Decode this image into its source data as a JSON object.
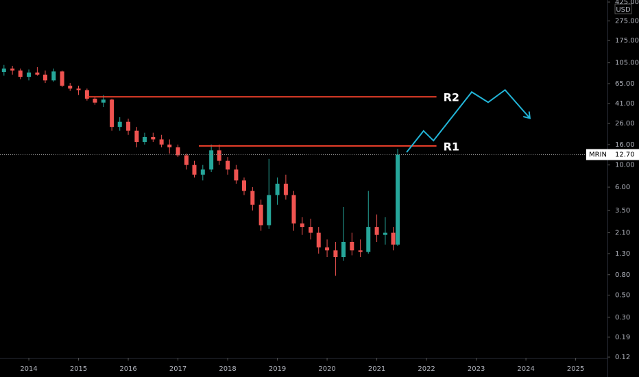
{
  "chart_data": {
    "type": "candlestick",
    "ticker": "MRIN",
    "currency": "USD",
    "log_scale": true,
    "up_color": "#26a69a",
    "down_color": "#ef5350",
    "last_value": {
      "value": 12.7,
      "label": "12.70"
    },
    "xlim": [
      2013.42,
      2025.64
    ],
    "xticks": [
      2014,
      2015,
      2016,
      2017,
      2018,
      2019,
      2020,
      2021,
      2022,
      2023,
      2024,
      2025
    ],
    "ylim": [
      0.12,
      425
    ],
    "yticks": [
      {
        "value": 0.12,
        "label": "0.12"
      },
      {
        "value": 0.19,
        "label": "0.19"
      },
      {
        "value": 0.3,
        "label": "0.30"
      },
      {
        "value": 0.5,
        "label": "0.50"
      },
      {
        "value": 0.8,
        "label": "0.80"
      },
      {
        "value": 1.3,
        "label": "1.30"
      },
      {
        "value": 2.1,
        "label": "2.10"
      },
      {
        "value": 3.5,
        "label": "3.50"
      },
      {
        "value": 6,
        "label": "6.00"
      },
      {
        "value": 10,
        "label": "10.00"
      },
      {
        "value": 16,
        "label": "16.00"
      },
      {
        "value": 26,
        "label": "26.00"
      },
      {
        "value": 41,
        "label": "41.00"
      },
      {
        "value": 65,
        "label": "65.00"
      },
      {
        "value": 105,
        "label": "105.00"
      },
      {
        "value": 175,
        "label": "175.00"
      },
      {
        "value": 275,
        "label": "275.00"
      },
      {
        "value": 425,
        "label": "425.00"
      }
    ],
    "candles": {
      "x": [
        2013.5,
        2013.67,
        2013.83,
        2014.0,
        2014.17,
        2014.33,
        2014.5,
        2014.67,
        2014.83,
        2015.0,
        2015.17,
        2015.33,
        2015.5,
        2015.67,
        2015.83,
        2016.0,
        2016.17,
        2016.33,
        2016.5,
        2016.67,
        2016.83,
        2017.0,
        2017.17,
        2017.33,
        2017.5,
        2017.67,
        2017.83,
        2018.0,
        2018.17,
        2018.33,
        2018.5,
        2018.67,
        2018.83,
        2019.0,
        2019.17,
        2019.33,
        2019.5,
        2019.67,
        2019.83,
        2020.0,
        2020.17,
        2020.33,
        2020.5,
        2020.67,
        2020.83,
        2021.0,
        2021.17,
        2021.33,
        2021.42
      ],
      "open": [
        85,
        92,
        88,
        76,
        84,
        80,
        70,
        86,
        62,
        58,
        56,
        46,
        42,
        45,
        24,
        27,
        22,
        17,
        19,
        18,
        16,
        15,
        12.5,
        10,
        8,
        9,
        14,
        11,
        9,
        7,
        5.5,
        4,
        2.5,
        5,
        6.5,
        5,
        2.6,
        2.4,
        2.1,
        1.5,
        1.4,
        1.2,
        1.7,
        1.4,
        1.35,
        2.4,
        2.0,
        2.1,
        1.6
      ],
      "high": [
        100,
        98,
        92,
        90,
        95,
        88,
        92,
        88,
        66,
        62,
        58,
        48,
        50,
        46,
        30,
        29,
        24,
        21,
        21,
        20,
        18,
        16,
        13,
        11,
        10,
        16,
        16,
        12,
        10,
        7.5,
        6,
        4.5,
        11.5,
        7.5,
        8,
        5.5,
        3,
        2.9,
        2.4,
        1.8,
        1.7,
        3.8,
        2.1,
        1.8,
        5.5,
        3.2,
        3.0,
        2.4,
        14.5
      ],
      "low": [
        78,
        80,
        72,
        70,
        78,
        66,
        68,
        60,
        55,
        50,
        44,
        40,
        38,
        22,
        22,
        20,
        15,
        16,
        17,
        15,
        13,
        12,
        9,
        7.5,
        7,
        8.5,
        10,
        8,
        6.5,
        5,
        3.5,
        2.2,
        2.3,
        4,
        4.5,
        2.2,
        2,
        1.8,
        1.3,
        1.2,
        0.78,
        1.1,
        1.25,
        1.2,
        1.3,
        1.7,
        1.6,
        1.4,
        1.55
      ],
      "close": [
        92,
        88,
        76,
        84,
        80,
        70,
        86,
        62,
        58,
        56,
        46,
        42,
        45,
        24,
        27,
        22,
        17,
        19,
        18,
        16,
        15,
        12.5,
        10,
        8,
        9,
        14,
        11,
        9,
        7,
        5.5,
        4,
        2.5,
        5,
        6.5,
        5,
        2.6,
        2.4,
        2.1,
        1.5,
        1.4,
        1.2,
        1.7,
        1.4,
        1.35,
        2.4,
        2.0,
        2.1,
        1.6,
        12.7
      ]
    },
    "levels": [
      {
        "name": "R2",
        "value": 48,
        "x": [
          2015.17,
          2022.2
        ],
        "color": "#f0412b"
      },
      {
        "name": "R1",
        "value": 15.5,
        "x": [
          2017.42,
          2022.2
        ],
        "color": "#f0412b"
      }
    ],
    "projection": {
      "color": "#22b5d8",
      "x": [
        2021.6,
        2021.94,
        2022.14,
        2022.91,
        2023.24,
        2023.58,
        2024.08
      ],
      "values": [
        13.4,
        21.9,
        17.5,
        53.6,
        42.3,
        56.2,
        29.3
      ]
    }
  }
}
